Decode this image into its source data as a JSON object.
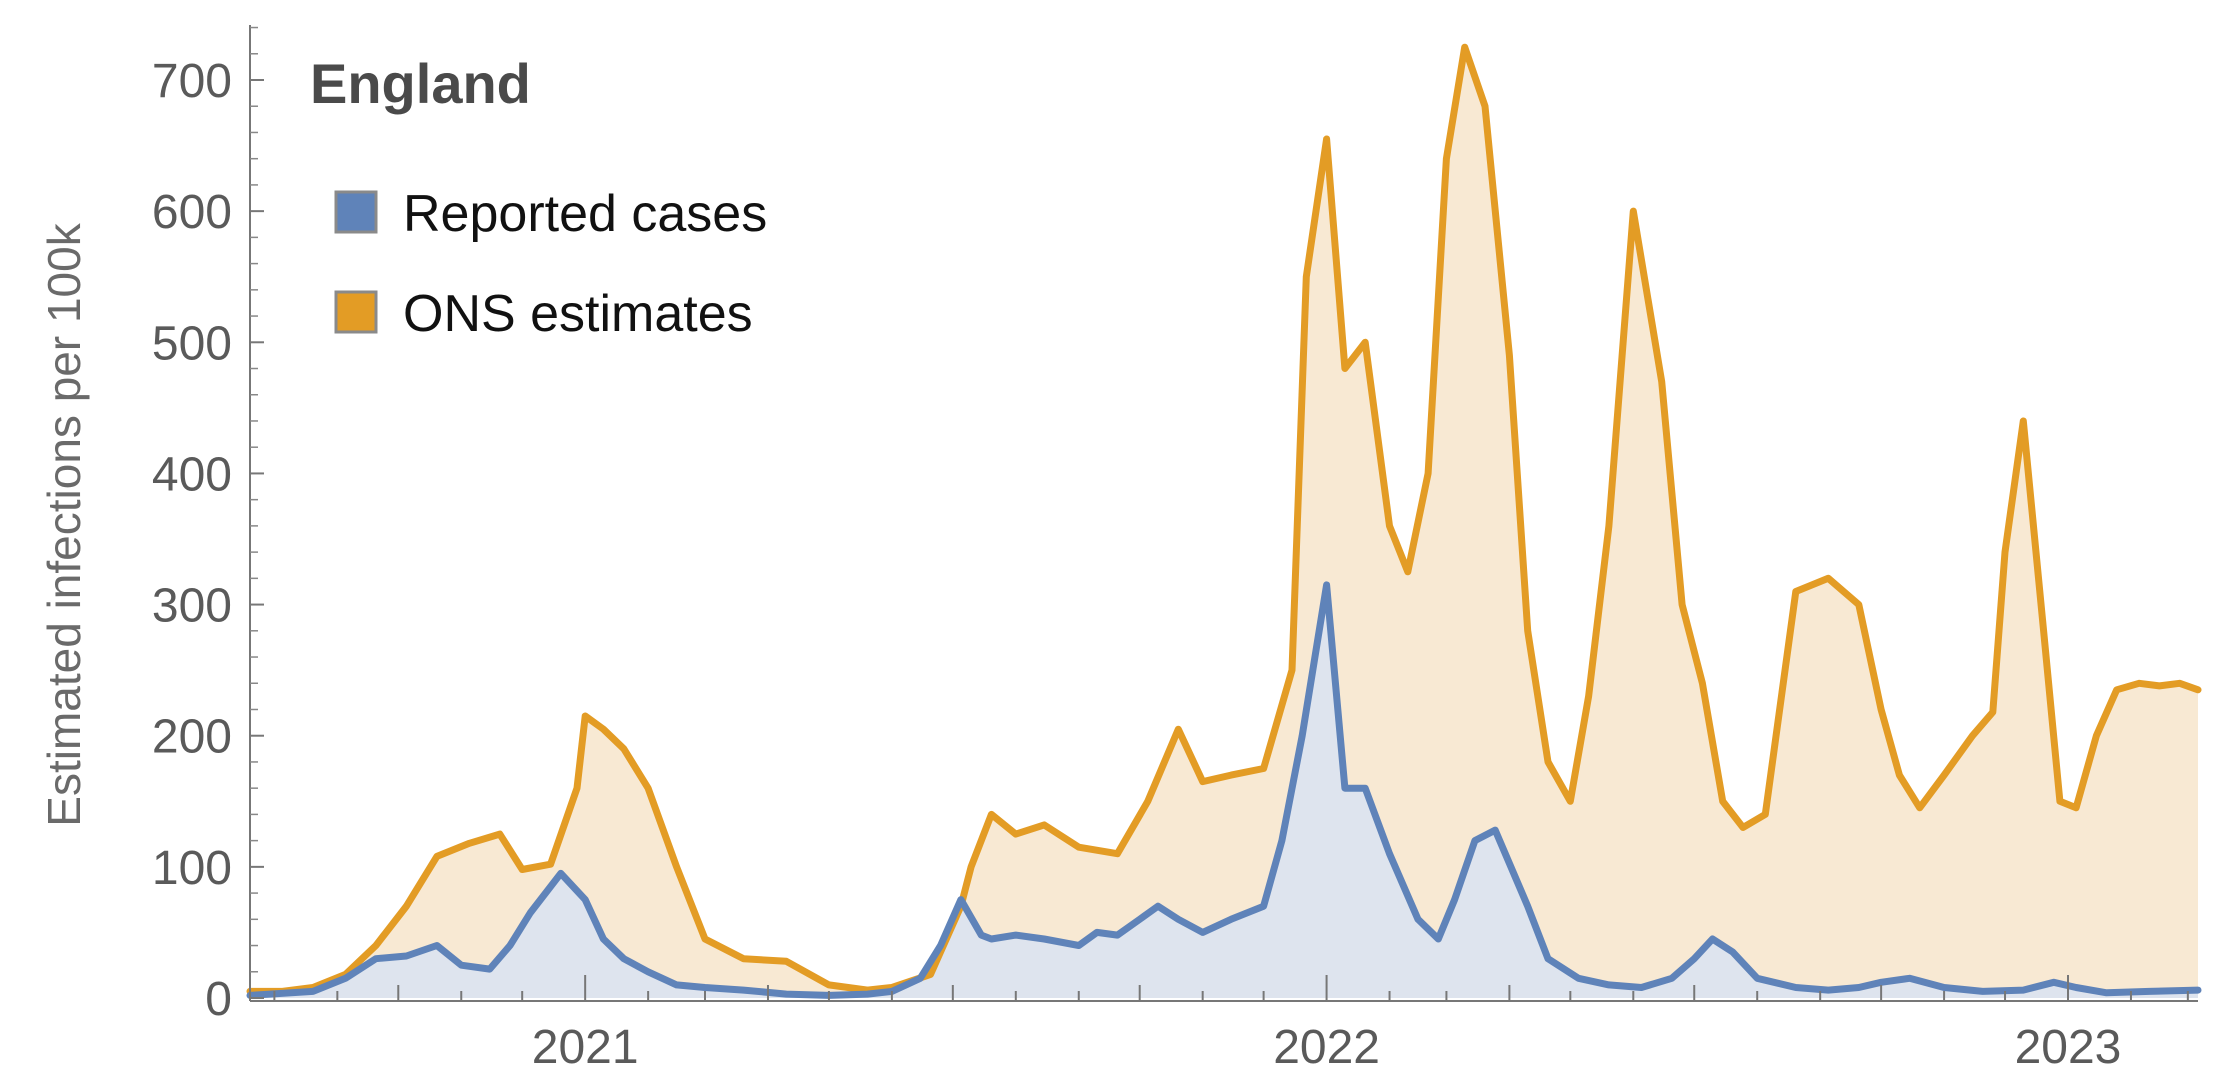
{
  "chart_data": {
    "type": "area",
    "title": "England",
    "xlabel": "",
    "ylabel": "Estimated infections per 100k",
    "xlim": [
      "2020-07-20",
      "2023-03-06"
    ],
    "ylim": [
      0,
      760
    ],
    "y_ticks": [
      0,
      100,
      200,
      300,
      400,
      500,
      600,
      700
    ],
    "x_tick_labels": [
      {
        "label": "2021",
        "date": "2021-01-01"
      },
      {
        "label": "2022",
        "date": "2022-01-01"
      },
      {
        "label": "2023",
        "date": "2023-01-01"
      }
    ],
    "legend_position": "top-left",
    "grid": false,
    "series": [
      {
        "name": "ONS estimates",
        "color": "#E39C25",
        "fill": "#F8E9D3",
        "x": [
          "2020-07-20",
          "2020-08-05",
          "2020-08-20",
          "2020-09-05",
          "2020-09-20",
          "2020-10-05",
          "2020-10-20",
          "2020-11-05",
          "2020-11-20",
          "2020-12-01",
          "2020-12-15",
          "2020-12-28",
          "2021-01-01",
          "2021-01-10",
          "2021-01-20",
          "2021-02-01",
          "2021-02-15",
          "2021-03-01",
          "2021-03-20",
          "2021-04-10",
          "2021-05-01",
          "2021-05-20",
          "2021-06-01",
          "2021-06-20",
          "2021-07-05",
          "2021-07-10",
          "2021-07-20",
          "2021-08-01",
          "2021-08-15",
          "2021-09-01",
          "2021-09-20",
          "2021-10-05",
          "2021-10-20",
          "2021-11-01",
          "2021-11-15",
          "2021-12-01",
          "2021-12-15",
          "2021-12-22",
          "2022-01-01",
          "2022-01-10",
          "2022-01-20",
          "2022-02-01",
          "2022-02-10",
          "2022-02-20",
          "2022-03-01",
          "2022-03-10",
          "2022-03-20",
          "2022-04-01",
          "2022-04-10",
          "2022-04-20",
          "2022-05-01",
          "2022-05-10",
          "2022-05-20",
          "2022-06-01",
          "2022-06-15",
          "2022-06-25",
          "2022-07-05",
          "2022-07-15",
          "2022-07-25",
          "2022-08-05",
          "2022-08-20",
          "2022-09-05",
          "2022-09-20",
          "2022-10-01",
          "2022-10-10",
          "2022-10-20",
          "2022-11-01",
          "2022-11-15",
          "2022-11-25",
          "2022-12-01",
          "2022-12-10",
          "2022-12-20",
          "2022-12-28",
          "2023-01-05",
          "2023-01-15",
          "2023-01-25",
          "2023-02-05",
          "2023-02-15",
          "2023-02-25",
          "2023-03-06"
        ],
        "values": [
          5,
          5,
          8,
          18,
          40,
          70,
          108,
          118,
          125,
          98,
          102,
          160,
          215,
          205,
          190,
          160,
          100,
          45,
          30,
          28,
          10,
          6,
          8,
          18,
          70,
          100,
          140,
          125,
          132,
          115,
          110,
          150,
          205,
          165,
          170,
          175,
          250,
          550,
          655,
          480,
          500,
          360,
          325,
          400,
          640,
          725,
          680,
          490,
          280,
          180,
          150,
          230,
          360,
          600,
          470,
          300,
          240,
          150,
          130,
          140,
          310,
          320,
          300,
          220,
          170,
          145,
          170,
          200,
          218,
          340,
          440,
          280,
          150,
          145,
          200,
          235,
          240,
          238,
          240,
          235
        ]
      },
      {
        "name": "Reported cases",
        "color": "#5F83B9",
        "fill": "#DEE4EE",
        "x": [
          "2020-07-20",
          "2020-08-20",
          "2020-09-05",
          "2020-09-20",
          "2020-10-05",
          "2020-10-20",
          "2020-11-01",
          "2020-11-15",
          "2020-11-25",
          "2020-12-05",
          "2020-12-20",
          "2021-01-01",
          "2021-01-10",
          "2021-01-20",
          "2021-02-01",
          "2021-02-15",
          "2021-03-01",
          "2021-03-20",
          "2021-04-10",
          "2021-05-01",
          "2021-05-20",
          "2021-06-01",
          "2021-06-15",
          "2021-06-25",
          "2021-07-05",
          "2021-07-15",
          "2021-07-20",
          "2021-08-01",
          "2021-08-15",
          "2021-09-01",
          "2021-09-10",
          "2021-09-20",
          "2021-10-01",
          "2021-10-10",
          "2021-10-20",
          "2021-11-01",
          "2021-11-15",
          "2021-12-01",
          "2021-12-10",
          "2021-12-20",
          "2022-01-01",
          "2022-01-10",
          "2022-01-20",
          "2022-02-01",
          "2022-02-15",
          "2022-02-25",
          "2022-03-05",
          "2022-03-15",
          "2022-03-25",
          "2022-04-10",
          "2022-04-20",
          "2022-05-05",
          "2022-05-20",
          "2022-06-05",
          "2022-06-20",
          "2022-07-01",
          "2022-07-10",
          "2022-07-20",
          "2022-08-01",
          "2022-08-20",
          "2022-09-05",
          "2022-09-20",
          "2022-10-01",
          "2022-10-15",
          "2022-11-01",
          "2022-11-20",
          "2022-12-10",
          "2022-12-25",
          "2023-01-05",
          "2023-01-20",
          "2023-02-10",
          "2023-03-06"
        ],
        "values": [
          2,
          5,
          15,
          30,
          32,
          40,
          25,
          22,
          40,
          65,
          95,
          75,
          45,
          30,
          20,
          10,
          8,
          6,
          3,
          2,
          3,
          5,
          15,
          40,
          75,
          48,
          45,
          48,
          45,
          40,
          50,
          48,
          60,
          70,
          60,
          50,
          60,
          70,
          120,
          200,
          315,
          160,
          160,
          110,
          60,
          45,
          75,
          120,
          128,
          70,
          30,
          15,
          10,
          8,
          15,
          30,
          45,
          35,
          15,
          8,
          6,
          8,
          12,
          15,
          8,
          5,
          6,
          12,
          8,
          4,
          5,
          6
        ]
      }
    ]
  }
}
